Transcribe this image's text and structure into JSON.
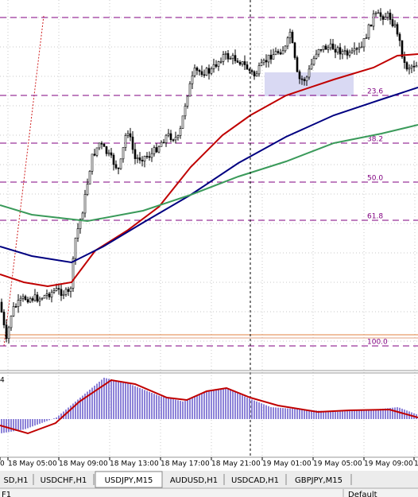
{
  "chart": {
    "fib_levels": [
      "23.6",
      "38.2",
      "50.0",
      "61.8",
      "100.0"
    ],
    "indicator_label": "4",
    "time_axis": [
      "0",
      "18 May 05:00",
      "18 May 09:00",
      "18 May 13:00",
      "18 May 17:00",
      "18 May 21:00",
      "19 May 01:00",
      "19 May 05:00",
      "19 May 09:00",
      "1"
    ]
  },
  "tabs": [
    "SD,H1",
    "USDCHF,H1",
    "USDJPY,M15",
    "AUDUSD,H1",
    "USDCAD,H1",
    "GBPJPY,M15"
  ],
  "status": [
    "F1",
    "Default"
  ]
}
